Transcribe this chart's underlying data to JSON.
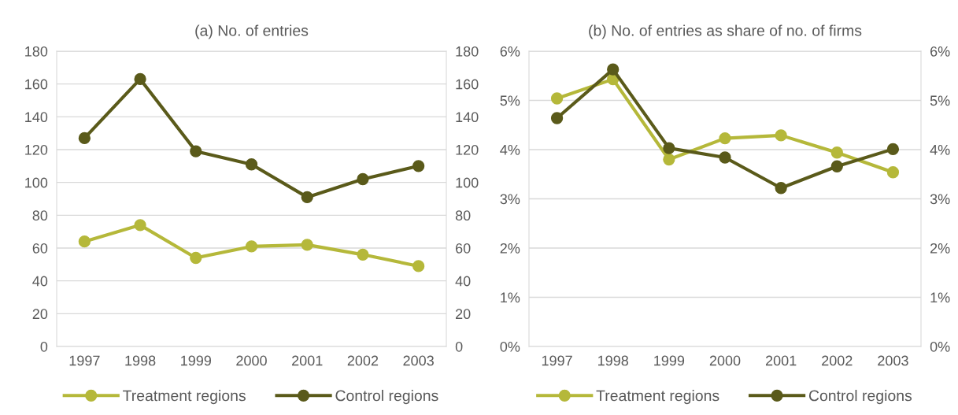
{
  "chart_data": [
    {
      "type": "line",
      "title": "(a) No. of entries",
      "categories": [
        "1997",
        "1998",
        "1999",
        "2000",
        "2001",
        "2002",
        "2003"
      ],
      "series": [
        {
          "name": "Treatment regions",
          "color": "#b5b83a",
          "values": [
            64,
            74,
            54,
            61,
            62,
            56,
            49
          ]
        },
        {
          "name": "Control regions",
          "color": "#5a5a1a",
          "values": [
            127,
            163,
            119,
            111,
            91,
            102,
            110
          ]
        }
      ],
      "ylim": [
        0,
        180
      ],
      "yticks": [
        0,
        20,
        40,
        60,
        80,
        100,
        120,
        140,
        160,
        180
      ],
      "y2lim": [
        0,
        180
      ],
      "y2ticks": [
        0,
        20,
        40,
        60,
        80,
        100,
        120,
        140,
        160,
        180
      ],
      "grid": true,
      "legend": "bottom",
      "marker": "circle",
      "line_style": "solid"
    },
    {
      "type": "line",
      "title": "(b) No. of entries as share of no. of firms",
      "categories": [
        "1997",
        "1998",
        "1999",
        "2000",
        "2001",
        "2002",
        "2003"
      ],
      "series": [
        {
          "name": "Treatment regions",
          "color": "#b5b83a",
          "values": [
            5.04,
            5.43,
            3.8,
            4.23,
            4.29,
            3.94,
            3.54
          ]
        },
        {
          "name": "Control regions",
          "color": "#5a5a1a",
          "values": [
            4.64,
            5.63,
            4.03,
            3.84,
            3.22,
            3.66,
            4.01
          ]
        }
      ],
      "ylim": [
        0,
        6
      ],
      "yticks": [
        {
          "value": 0,
          "label": "0%"
        },
        {
          "value": 1,
          "label": "1%"
        },
        {
          "value": 2,
          "label": "2%"
        },
        {
          "value": 3,
          "label": "3%"
        },
        {
          "value": 4,
          "label": "4%"
        },
        {
          "value": 5,
          "label": "5%"
        },
        {
          "value": 6,
          "label": "6%"
        }
      ],
      "y2lim": [
        0,
        6
      ],
      "y2ticks": [
        {
          "value": 0,
          "label": "0%"
        },
        {
          "value": 1,
          "label": "1%"
        },
        {
          "value": 2,
          "label": "2%"
        },
        {
          "value": 3,
          "label": "3%"
        },
        {
          "value": 4,
          "label": "4%"
        },
        {
          "value": 5,
          "label": "5%"
        },
        {
          "value": 6,
          "label": "6%"
        }
      ],
      "grid": true,
      "legend": "bottom",
      "marker": "circle",
      "line_style": "solid"
    }
  ]
}
